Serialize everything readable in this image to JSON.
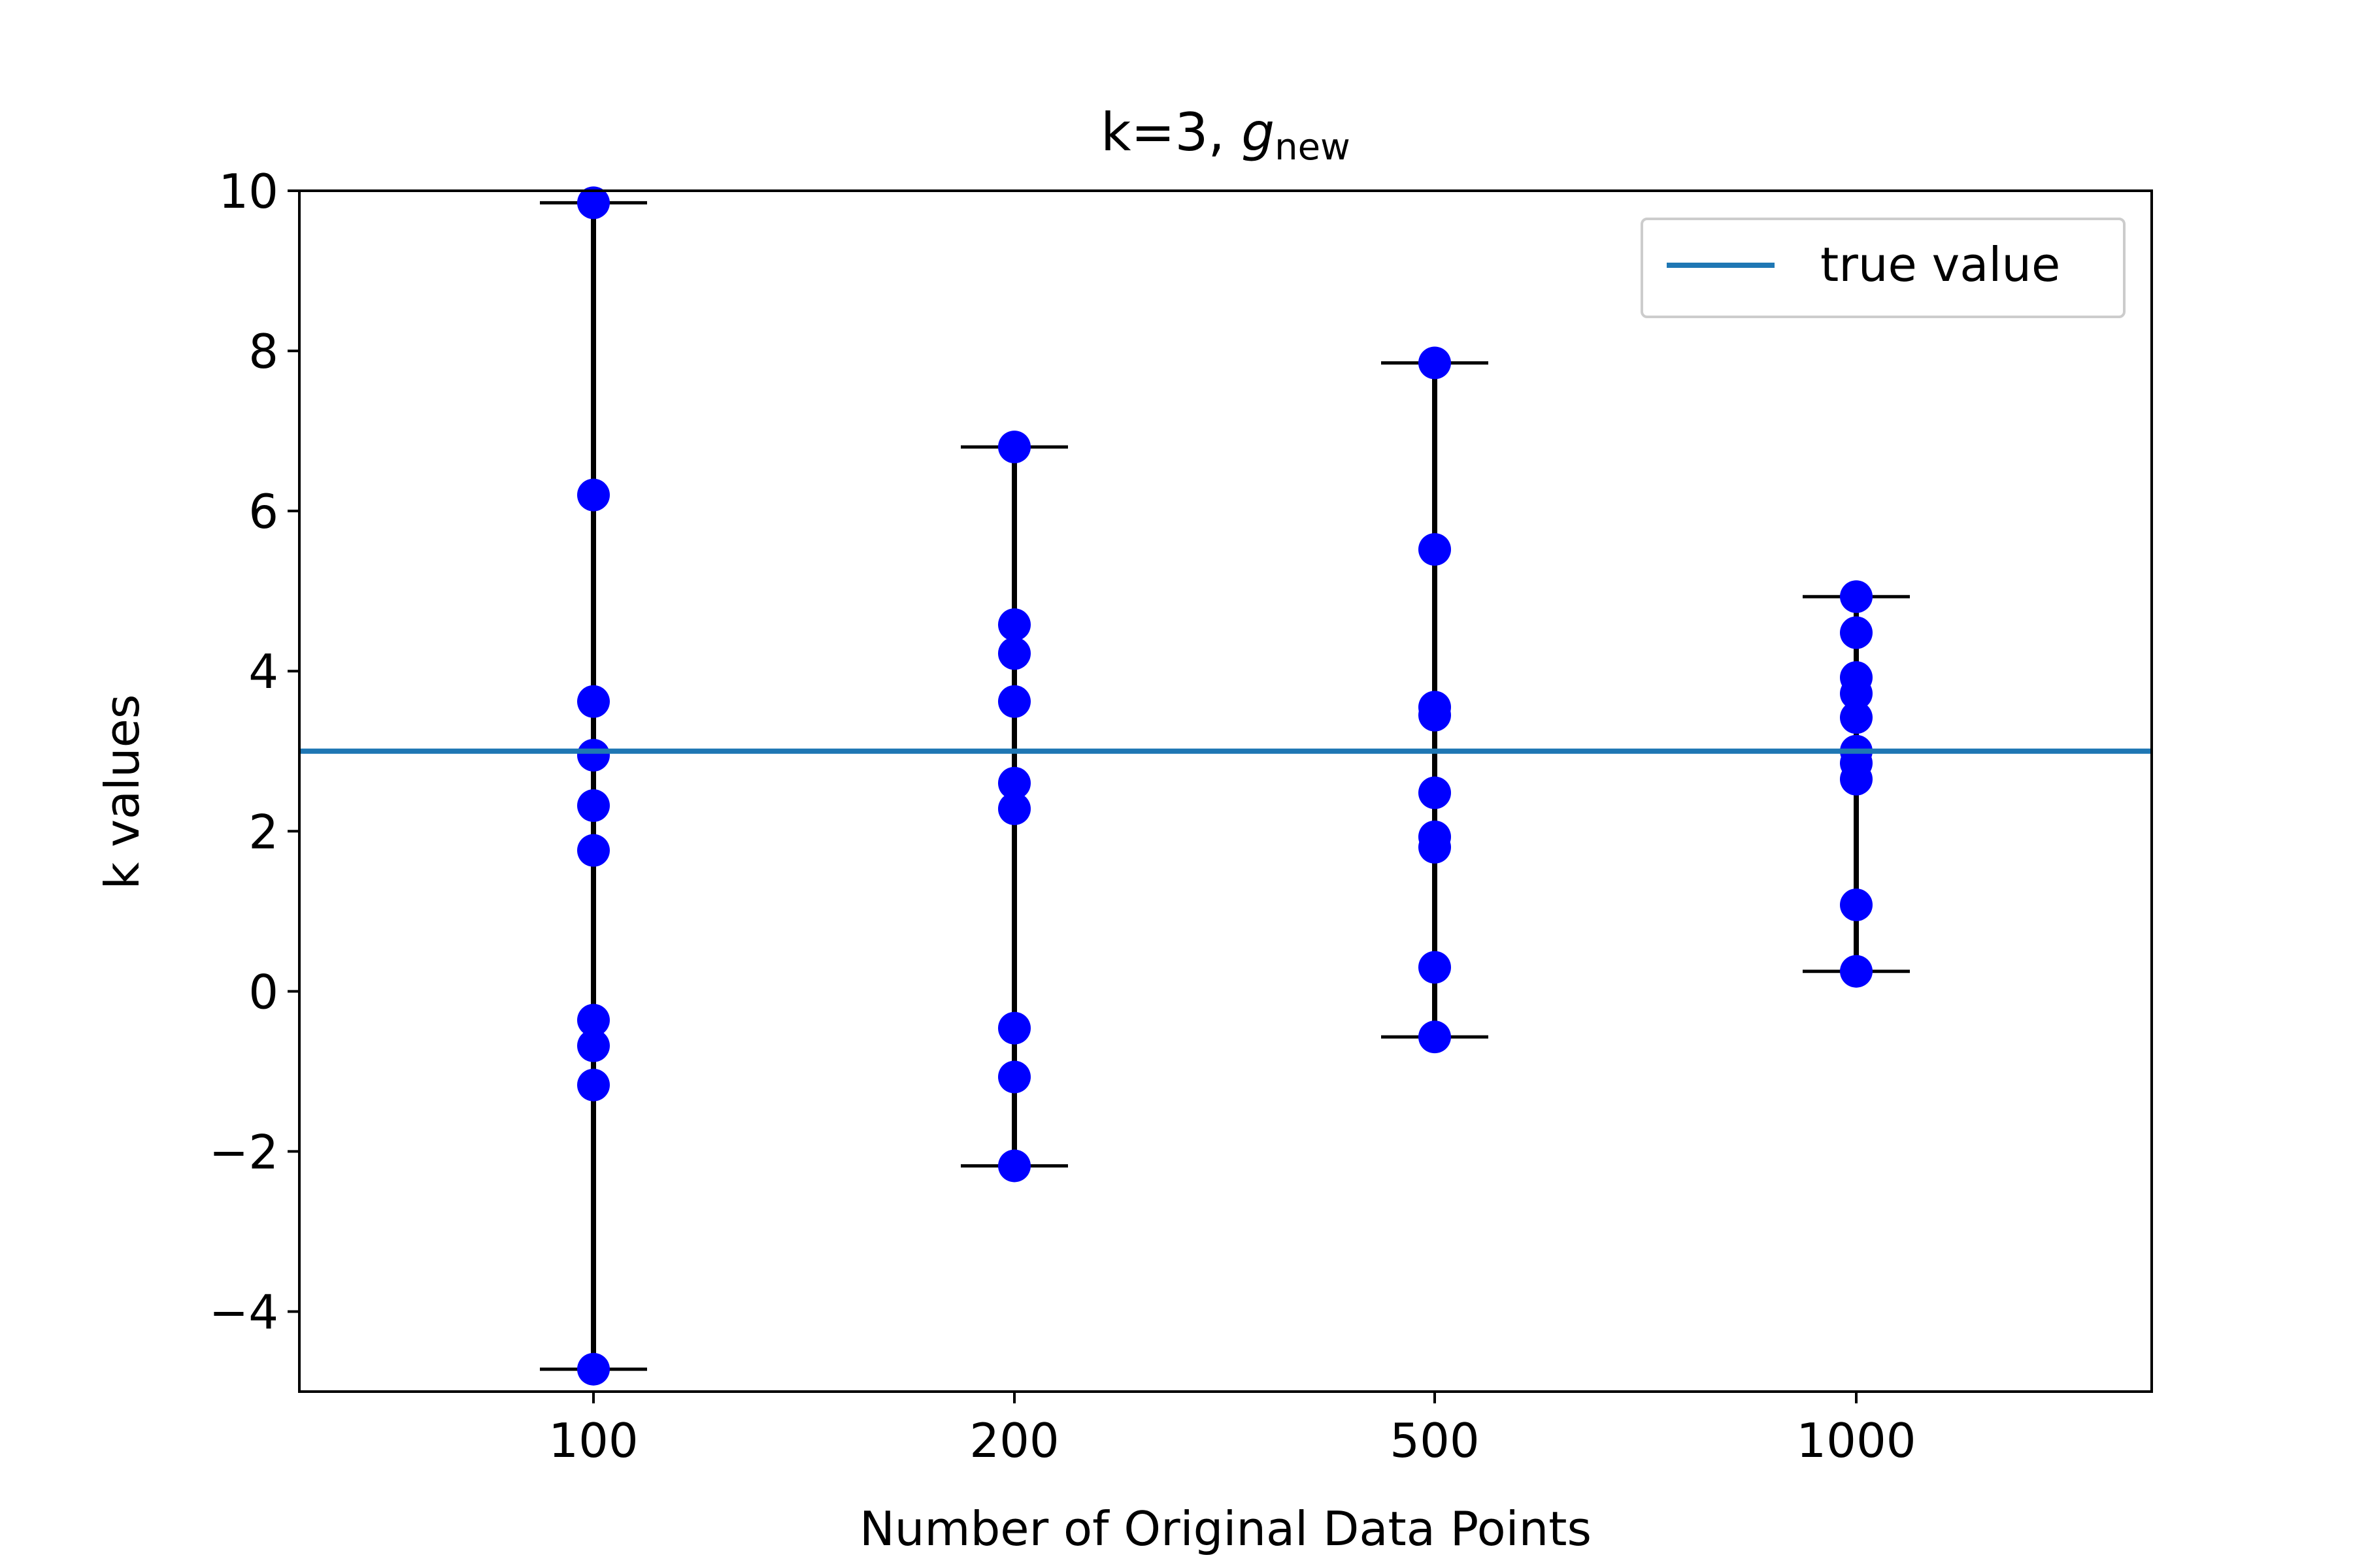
{
  "chart_data": {
    "type": "scatter",
    "title": "k=3, ",
    "title_symbol": "g",
    "title_subscript": "new",
    "xlabel": "Number of Original Data Points",
    "ylabel": "k values",
    "categories": [
      "100",
      "200",
      "500",
      "1000"
    ],
    "ylim": [
      -5,
      10
    ],
    "yticks": [
      -4,
      -2,
      0,
      2,
      4,
      6,
      8,
      10
    ],
    "ytick_labels": [
      "−4",
      "−2",
      "0",
      "2",
      "4",
      "6",
      "8",
      "10"
    ],
    "grid": false,
    "legend": {
      "position": "top-right",
      "entries": [
        "true value"
      ]
    },
    "true_value": 3,
    "series": [
      {
        "category": "100",
        "values": [
          9.85,
          6.2,
          3.62,
          2.95,
          2.32,
          1.76,
          -0.36,
          -0.68,
          -1.17,
          -4.72
        ],
        "min": -4.72,
        "max": 9.85
      },
      {
        "category": "200",
        "values": [
          6.8,
          4.58,
          4.22,
          3.62,
          2.6,
          2.28,
          -0.46,
          -1.07,
          -2.18
        ],
        "min": -2.18,
        "max": 6.8
      },
      {
        "category": "500",
        "values": [
          7.85,
          5.52,
          3.55,
          3.45,
          2.48,
          1.93,
          1.8,
          0.3,
          -0.57
        ],
        "min": -0.57,
        "max": 7.85
      },
      {
        "category": "1000",
        "values": [
          4.93,
          4.48,
          3.92,
          3.72,
          3.42,
          3.0,
          2.85,
          2.65,
          1.08,
          0.25
        ],
        "min": 0.25,
        "max": 4.93
      }
    ],
    "colors": {
      "points": "#0000ff",
      "errorbars": "#000000",
      "true_value_line": "#1f77b4",
      "legend_border": "#cccccc"
    }
  }
}
